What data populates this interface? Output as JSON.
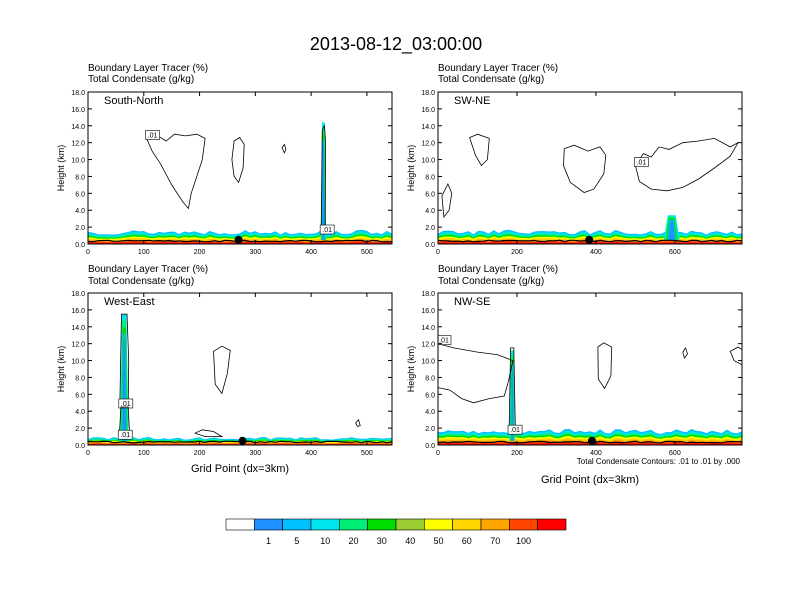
{
  "chart_data": {
    "type": "heatmap",
    "title": "2013-08-12_03:00:00",
    "xlabel": "Grid Point (dx=3km)",
    "ylabel": "Height (km)",
    "field_label": "Boundary Layer Tracer   (%)",
    "contour_label": "Total Condensate   (g/kg)",
    "ylim": [
      0,
      18
    ],
    "yticks": [
      "0.0",
      "2.0",
      "4.0",
      "6.0",
      "8.0",
      "10.0",
      "12.0",
      "14.0",
      "16.0",
      "18.0"
    ],
    "contour_note": "Total Condensate Contours: .01 to .01 by .000",
    "colorbar": {
      "levels": [
        "1",
        "5",
        "10",
        "20",
        "30",
        "40",
        "50",
        "60",
        "70",
        "100"
      ],
      "colors": [
        "#ffffff",
        "#1e90ff",
        "#00bfff",
        "#00e5ee",
        "#00ee76",
        "#00dd00",
        "#9acd32",
        "#ffff00",
        "#ffd700",
        "#ffa500",
        "#ff4500",
        "#ff0000"
      ]
    },
    "panels": [
      {
        "name": "South-North",
        "xlim": [
          0,
          545
        ],
        "xticks": [
          0,
          100,
          200,
          300,
          400,
          500
        ],
        "pbl_top_km": 1.4,
        "plumes": [
          {
            "x": 422,
            "top_km": 14.4,
            "width": 10
          }
        ],
        "clouds": [
          {
            "label": ".01",
            "points": [
              [
                105,
                12.5
              ],
              [
                120,
                13.0
              ],
              [
                140,
                12.2
              ],
              [
                155,
                13.0
              ],
              [
                175,
                12.8
              ],
              [
                195,
                13.0
              ],
              [
                210,
                12.5
              ],
              [
                205,
                10.0
              ],
              [
                195,
                8.0
              ],
              [
                185,
                6.0
              ],
              [
                180,
                4.2
              ],
              [
                170,
                5.0
              ],
              [
                150,
                7.0
              ],
              [
                130,
                9.5
              ],
              [
                115,
                11.0
              ]
            ]
          },
          {
            "label": "",
            "points": [
              [
                262,
                12.2
              ],
              [
                272,
                12.6
              ],
              [
                280,
                11.8
              ],
              [
                278,
                9.0
              ],
              [
                270,
                7.3
              ],
              [
                262,
                8.0
              ],
              [
                258,
                10.0
              ]
            ]
          },
          {
            "label": "",
            "points": [
              [
                348,
                11.4
              ],
              [
                352,
                11.8
              ],
              [
                355,
                11.2
              ],
              [
                352,
                10.8
              ]
            ]
          },
          {
            "label": ".01",
            "points": [
              [
                418,
                1.3
              ],
              [
                420,
                13.5
              ],
              [
                424,
                14.0
              ],
              [
                426,
                12.0
              ],
              [
                425,
                1.3
              ]
            ]
          }
        ],
        "ground_dot_x": 270
      },
      {
        "name": "SW-NE",
        "xlim": [
          0,
          770
        ],
        "xticks": [
          0,
          200,
          400,
          600
        ],
        "pbl_top_km": 1.4,
        "plumes": [
          {
            "x": 592,
            "top_km": 3.4,
            "width": 40
          }
        ],
        "clouds": [
          {
            "label": "",
            "points": [
              [
                80,
                12.6
              ],
              [
                100,
                13.0
              ],
              [
                130,
                12.5
              ],
              [
                125,
                10.0
              ],
              [
                110,
                9.3
              ],
              [
                95,
                10.5
              ]
            ]
          },
          {
            "label": "",
            "points": [
              [
                320,
                11.3
              ],
              [
                345,
                11.7
              ],
              [
                380,
                11.0
              ],
              [
                410,
                11.5
              ],
              [
                425,
                10.5
              ],
              [
                420,
                8.3
              ],
              [
                395,
                6.5
              ],
              [
                370,
                6.1
              ],
              [
                335,
                7.3
              ],
              [
                318,
                9.3
              ]
            ]
          },
          {
            "label": ".01",
            "points": [
              [
                500,
                9.3
              ],
              [
                520,
                10.7
              ],
              [
                540,
                10.3
              ],
              [
                560,
                11.5
              ],
              [
                585,
                11.2
              ],
              [
                620,
                12.0
              ],
              [
                660,
                12.2
              ],
              [
                700,
                12.5
              ],
              [
                740,
                11.5
              ],
              [
                760,
                12.0
              ],
              [
                740,
                10.4
              ],
              [
                700,
                9.0
              ],
              [
                660,
                7.7
              ],
              [
                620,
                6.7
              ],
              [
                580,
                6.3
              ],
              [
                540,
                6.5
              ],
              [
                510,
                7.4
              ]
            ]
          },
          {
            "label": "",
            "points": [
              [
                10,
                5.7
              ],
              [
                25,
                7.1
              ],
              [
                35,
                6.0
              ],
              [
                28,
                4.0
              ],
              [
                15,
                3.2
              ]
            ]
          }
        ],
        "ground_dot_x": 383
      },
      {
        "name": "West-East",
        "xlim": [
          0,
          545
        ],
        "xticks": [
          0,
          100,
          200,
          300,
          400,
          500
        ],
        "pbl_top_km": 0.8,
        "plumes": [
          {
            "x": 65,
            "top_km": 15.5,
            "width": 16
          }
        ],
        "clouds": [
          {
            "label": ".01",
            "points": [
              [
                57,
                4.5
              ],
              [
                60,
                15.5
              ],
              [
                70,
                15.5
              ],
              [
                73,
                10.0
              ],
              [
                72,
                4.5
              ]
            ]
          },
          {
            "label": ".01",
            "points": [
              [
                56,
                0.8
              ],
              [
                59,
                4.5
              ],
              [
                72,
                4.5
              ],
              [
                75,
                0.8
              ]
            ]
          },
          {
            "label": "",
            "points": [
              [
                225,
                11.1
              ],
              [
                240,
                11.7
              ],
              [
                255,
                11.2
              ],
              [
                250,
                8.5
              ],
              [
                240,
                6.1
              ],
              [
                228,
                7.2
              ]
            ]
          },
          {
            "label": "",
            "points": [
              [
                192,
                1.4
              ],
              [
                205,
                1.8
              ],
              [
                225,
                1.6
              ],
              [
                240,
                1.0
              ],
              [
                210,
                1.0
              ]
            ]
          },
          {
            "label": "",
            "points": [
              [
                480,
                2.6
              ],
              [
                485,
                3.0
              ],
              [
                488,
                2.3
              ],
              [
                483,
                2.2
              ]
            ]
          }
        ],
        "ground_dot_x": 277
      },
      {
        "name": "NW-SE",
        "xlim": [
          0,
          770
        ],
        "xticks": [
          0,
          200,
          400,
          600
        ],
        "pbl_top_km": 1.6,
        "plumes": [
          {
            "x": 188,
            "top_km": 11.2,
            "width": 14
          }
        ],
        "clouds": [
          {
            "label": ".01",
            "points": [
              [
                0,
                12.0
              ],
              [
                40,
                11.5
              ],
              [
                100,
                11.0
              ],
              [
                150,
                10.7
              ],
              [
                190,
                10.0
              ],
              [
                178,
                7.5
              ],
              [
                168,
                5.8
              ],
              [
                130,
                5.5
              ],
              [
                90,
                5.0
              ],
              [
                60,
                5.5
              ],
              [
                30,
                6.5
              ],
              [
                0,
                6.8
              ]
            ]
          },
          {
            "label": ".01",
            "points": [
              [
                180,
                1.4
              ],
              [
                184,
                11.5
              ],
              [
                192,
                11.5
              ],
              [
                196,
                1.4
              ]
            ]
          },
          {
            "label": "",
            "points": [
              [
                405,
                11.6
              ],
              [
                420,
                12.1
              ],
              [
                440,
                11.6
              ],
              [
                438,
                8.2
              ],
              [
                422,
                6.7
              ],
              [
                406,
                7.8
              ]
            ]
          },
          {
            "label": "",
            "points": [
              [
                620,
                11.0
              ],
              [
                627,
                11.5
              ],
              [
                632,
                10.8
              ],
              [
                624,
                10.3
              ]
            ]
          },
          {
            "label": "",
            "points": [
              [
                740,
                11.1
              ],
              [
                760,
                11.6
              ],
              [
                770,
                11.3
              ],
              [
                770,
                9.5
              ],
              [
                750,
                10.0
              ]
            ]
          }
        ],
        "ground_dot_x": 390
      }
    ]
  }
}
